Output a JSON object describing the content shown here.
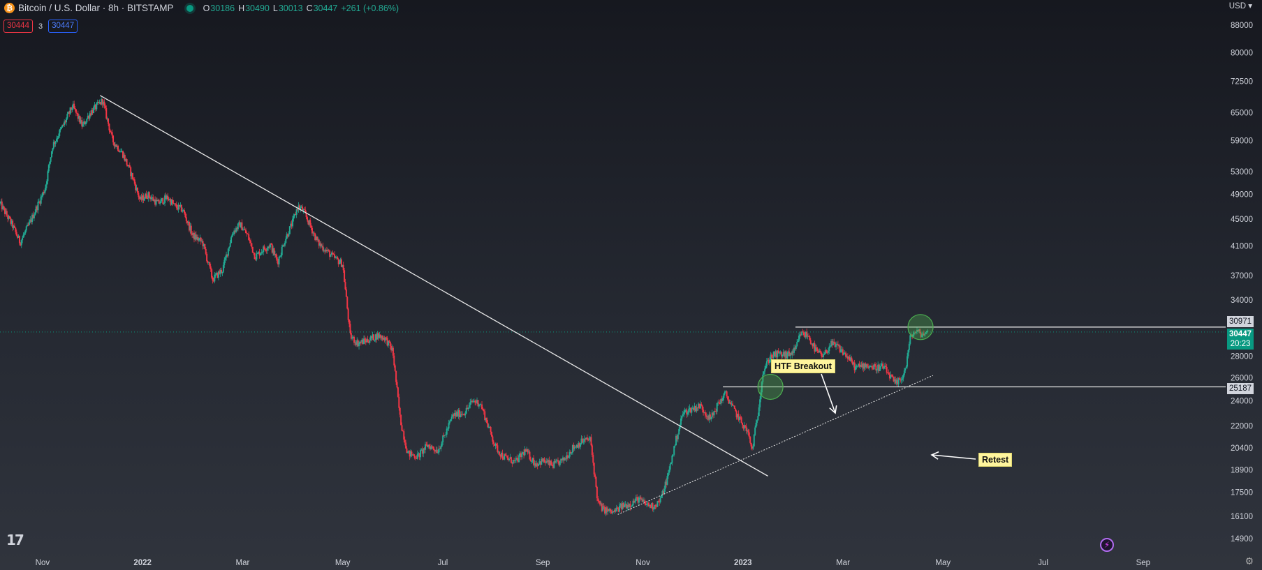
{
  "header": {
    "symbol_title": "Bitcoin / U.S. Dollar · 8h · BITSTAMP",
    "coin_icon": "bitcoin-icon",
    "ohlc": {
      "o_label": "O",
      "o": "30186",
      "h_label": "H",
      "h": "30490",
      "l_label": "L",
      "l": "30013",
      "c_label": "C",
      "c": "30447",
      "change": "+261 (+0.86%)"
    },
    "sell_price": "30444",
    "qty": "3",
    "buy_price": "30447",
    "currency": "USD"
  },
  "price_tags": {
    "level_high": "30971",
    "current": "30447",
    "countdown": "20:23",
    "level_low": "25187"
  },
  "annotations": {
    "breakout": "HTF Breakout",
    "retest": "Retest"
  },
  "colors": {
    "up": "#22ab94",
    "down": "#f23645",
    "line": "#e8e8e8",
    "circle": "#4caf50",
    "label_bg": "#fff59d"
  },
  "chart_data": {
    "type": "candlestick",
    "title": "Bitcoin / U.S. Dollar · 8h · BITSTAMP",
    "y_scale": "log",
    "ylim": [
      14200,
      96000
    ],
    "y_ticks": [
      88000,
      80000,
      72500,
      65000,
      59000,
      53000,
      49000,
      45000,
      41000,
      37000,
      34000,
      30971,
      28000,
      26000,
      25187,
      24000,
      22000,
      20400,
      18900,
      17500,
      16100,
      14900
    ],
    "x_ticks": [
      "Nov",
      "2022",
      "Mar",
      "May",
      "Jul",
      "Sep",
      "Nov",
      "2023",
      "Mar",
      "May",
      "Jul",
      "Sep"
    ],
    "xlim_month_index": [
      -0.85,
      23.65
    ],
    "series": [
      {
        "name": "BTCUSD",
        "anchors": [
          [
            -0.85,
            47500
          ],
          [
            -0.6,
            44000
          ],
          [
            -0.45,
            41500
          ],
          [
            -0.25,
            44500
          ],
          [
            0.05,
            50000
          ],
          [
            0.2,
            58000
          ],
          [
            0.45,
            63000
          ],
          [
            0.6,
            66500
          ],
          [
            0.8,
            62000
          ],
          [
            0.95,
            65000
          ],
          [
            1.2,
            67800
          ],
          [
            1.4,
            59000
          ],
          [
            1.6,
            56500
          ],
          [
            1.8,
            52000
          ],
          [
            1.95,
            48000
          ],
          [
            2.1,
            49000
          ],
          [
            2.3,
            47500
          ],
          [
            2.5,
            48500
          ],
          [
            2.65,
            47000
          ],
          [
            2.8,
            46500
          ],
          [
            3.0,
            42500
          ],
          [
            3.2,
            41500
          ],
          [
            3.4,
            36500
          ],
          [
            3.6,
            37800
          ],
          [
            3.8,
            43000
          ],
          [
            3.95,
            44200
          ],
          [
            4.1,
            42500
          ],
          [
            4.25,
            39500
          ],
          [
            4.4,
            40500
          ],
          [
            4.55,
            41200
          ],
          [
            4.7,
            38800
          ],
          [
            4.85,
            42000
          ],
          [
            5.0,
            44500
          ],
          [
            5.1,
            47000
          ],
          [
            5.2,
            46500
          ],
          [
            5.35,
            44000
          ],
          [
            5.5,
            41500
          ],
          [
            5.65,
            40500
          ],
          [
            5.8,
            39500
          ],
          [
            6.0,
            38500
          ],
          [
            6.15,
            30000
          ],
          [
            6.3,
            29300
          ],
          [
            6.5,
            29600
          ],
          [
            6.7,
            30100
          ],
          [
            6.85,
            29800
          ],
          [
            7.0,
            28500
          ],
          [
            7.15,
            22500
          ],
          [
            7.3,
            20000
          ],
          [
            7.5,
            19800
          ],
          [
            7.7,
            20600
          ],
          [
            7.9,
            20200
          ],
          [
            8.05,
            21400
          ],
          [
            8.2,
            22800
          ],
          [
            8.45,
            23100
          ],
          [
            8.6,
            24000
          ],
          [
            8.75,
            23800
          ],
          [
            8.9,
            22100
          ],
          [
            9.05,
            20500
          ],
          [
            9.2,
            19800
          ],
          [
            9.45,
            19400
          ],
          [
            9.65,
            20200
          ],
          [
            9.85,
            19300
          ],
          [
            10.0,
            19500
          ],
          [
            10.2,
            19200
          ],
          [
            10.4,
            19500
          ],
          [
            10.6,
            20400
          ],
          [
            10.8,
            20900
          ],
          [
            10.95,
            21000
          ],
          [
            11.1,
            16900
          ],
          [
            11.2,
            16500
          ],
          [
            11.4,
            16300
          ],
          [
            11.6,
            16700
          ],
          [
            11.75,
            16800
          ],
          [
            11.9,
            17100
          ],
          [
            12.05,
            16800
          ],
          [
            12.2,
            16650
          ],
          [
            12.35,
            17000
          ],
          [
            12.5,
            18500
          ],
          [
            12.65,
            20800
          ],
          [
            12.8,
            23000
          ],
          [
            12.95,
            23300
          ],
          [
            13.15,
            23600
          ],
          [
            13.35,
            22500
          ],
          [
            13.5,
            23700
          ],
          [
            13.65,
            24600
          ],
          [
            13.8,
            23400
          ],
          [
            13.95,
            22400
          ],
          [
            14.1,
            21500
          ],
          [
            14.18,
            20200
          ],
          [
            14.3,
            23000
          ],
          [
            14.4,
            26500
          ],
          [
            14.55,
            28000
          ],
          [
            14.7,
            28200
          ],
          [
            14.9,
            28100
          ],
          [
            15.05,
            28600
          ],
          [
            15.15,
            30300
          ],
          [
            15.3,
            30100
          ],
          [
            15.45,
            28600
          ],
          [
            15.6,
            27900
          ],
          [
            15.75,
            29200
          ],
          [
            15.9,
            28900
          ],
          [
            16.1,
            27900
          ],
          [
            16.25,
            26900
          ],
          [
            16.45,
            27200
          ],
          [
            16.65,
            26900
          ],
          [
            16.8,
            27000
          ],
          [
            16.95,
            26100
          ],
          [
            17.05,
            25400
          ],
          [
            17.15,
            25800
          ],
          [
            17.25,
            26800
          ],
          [
            17.35,
            30000
          ],
          [
            17.45,
            30500
          ],
          [
            17.6,
            30200
          ],
          [
            17.7,
            30447
          ]
        ]
      }
    ],
    "drawings": [
      {
        "type": "trend_line",
        "from": [
          1.15,
          69000
        ],
        "to": [
          14.5,
          18500
        ]
      },
      {
        "type": "trend_line",
        "from": [
          11.5,
          16200
        ],
        "to": [
          17.8,
          26200
        ],
        "style": "dotted"
      },
      {
        "type": "horizontal_line",
        "from": [
          15.05,
          30971
        ],
        "to": [
          23.65,
          30971
        ]
      },
      {
        "type": "horizontal_line",
        "from": [
          13.6,
          25187
        ],
        "to": [
          23.65,
          25187
        ]
      },
      {
        "type": "circle",
        "at": [
          14.55,
          25187
        ]
      },
      {
        "type": "circle",
        "at": [
          17.55,
          30971
        ]
      }
    ]
  }
}
